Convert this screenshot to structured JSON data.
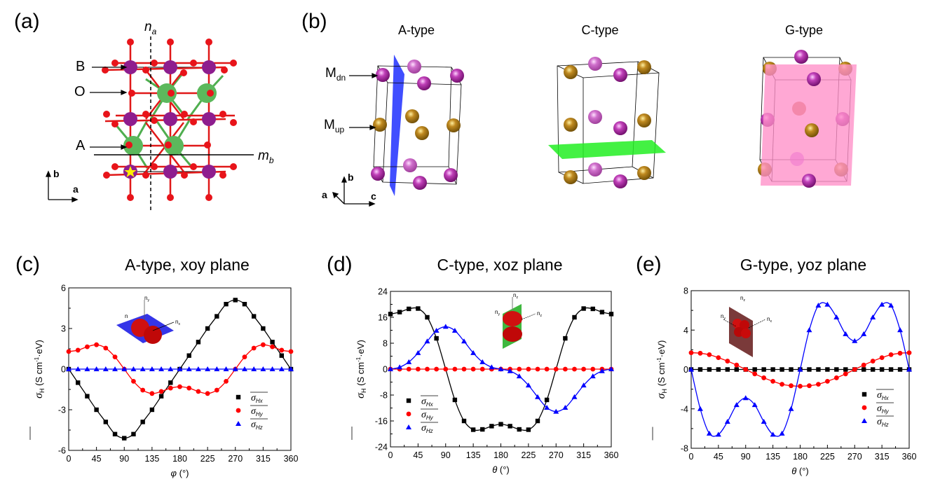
{
  "panels": {
    "a": {
      "label": "(a)",
      "labels": {
        "B": "B",
        "O": "O",
        "A": "A",
        "na": "n",
        "na_sub": "a",
        "mb": "m",
        "mb_sub": "b",
        "axis_b": "b",
        "axis_a": "a"
      },
      "colors": {
        "oxygen": "#e8141a",
        "B_site": "#8e1d8e",
        "A_site": "#5cb85c",
        "bond": "#e01818",
        "star": "#ffee00"
      }
    },
    "b": {
      "label": "(b)",
      "types": [
        "A-type",
        "C-type",
        "G-type"
      ],
      "labels": {
        "mdn": "M",
        "mdn_sub": "dn",
        "mup": "M",
        "mup_sub": "up",
        "axis_b": "b",
        "axis_a": "a",
        "axis_c": "c"
      },
      "colors": {
        "M_dn": "#a0169a",
        "M_up": "#b07a10",
        "light_magenta": "#c455c0",
        "plane_A": "#2b3bff",
        "plane_C": "#22ee22",
        "plane_G": "#ff8fc8"
      }
    }
  },
  "legend_labels": {
    "sigma": "σ",
    "sub_x": "Hx",
    "sub_y": "Hy",
    "sub_z": "Hz"
  },
  "inset_labels": {
    "nx": "n",
    "nx_sub": "x",
    "ny": "n",
    "ny_sub": "y",
    "nz": "n",
    "nz_sub": "z"
  },
  "chart_data": [
    {
      "id": "c",
      "panel_label": "(c)",
      "type": "line",
      "title": "A-type, xoy plane",
      "xlabel": "φ (°)",
      "xlabel_symbol": "φ",
      "xlabel_unit": " (°)",
      "ylabel": "σH (S cm-1·eV)",
      "ylabel_parts": {
        "sigma": "σ",
        "sub": "H",
        "unit_a": " (S cm",
        "sup": "-1",
        "unit_b": "·eV)"
      },
      "xlim": [
        0,
        360
      ],
      "ylim": [
        -6,
        6
      ],
      "xticks": [
        0,
        45,
        90,
        135,
        180,
        225,
        270,
        315,
        360
      ],
      "yticks": [
        -6,
        -3,
        0,
        3,
        6
      ],
      "legend": "lower-right",
      "inset_plane_color": "#3535e8",
      "x": [
        0,
        15,
        30,
        45,
        60,
        75,
        90,
        105,
        120,
        135,
        150,
        165,
        180,
        195,
        210,
        225,
        240,
        255,
        270,
        285,
        300,
        315,
        330,
        345,
        360
      ],
      "series": [
        {
          "name": "σHx",
          "color": "#000000",
          "marker": "square",
          "values": [
            0,
            -1,
            -2,
            -3,
            -3.9,
            -4.8,
            -5.1,
            -4.8,
            -3.9,
            -3,
            -2,
            -1,
            0,
            1,
            2,
            3,
            3.9,
            4.8,
            5.1,
            4.8,
            3.9,
            3,
            2,
            1,
            0
          ]
        },
        {
          "name": "σHy",
          "color": "#ff0000",
          "marker": "circle",
          "values": [
            1.3,
            1.4,
            1.65,
            1.8,
            1.55,
            0.9,
            0,
            -0.9,
            -1.55,
            -1.8,
            -1.65,
            -1.4,
            -1.3,
            -1.4,
            -1.65,
            -1.8,
            -1.55,
            -0.9,
            0,
            0.9,
            1.55,
            1.8,
            1.65,
            1.4,
            1.3
          ]
        },
        {
          "name": "σHz",
          "color": "#0000ff",
          "marker": "triangle",
          "values": [
            0,
            0,
            0,
            0,
            0,
            0,
            0,
            0,
            0,
            0,
            0,
            0,
            0,
            0,
            0,
            0,
            0,
            0,
            0,
            0,
            0,
            0,
            0,
            0,
            0
          ]
        }
      ]
    },
    {
      "id": "d",
      "panel_label": "(d)",
      "type": "line",
      "title": "C-type, xoz plane",
      "xlabel": "θ (°)",
      "xlabel_symbol": "θ",
      "xlabel_unit": " (°)",
      "ylabel": "σH (S cm-1·eV)",
      "ylabel_parts": {
        "sigma": "σ",
        "sub": "H",
        "unit_a": " (S cm",
        "sup": "-1",
        "unit_b": "·eV)"
      },
      "xlim": [
        0,
        360
      ],
      "ylim": [
        -24,
        24
      ],
      "xticks": [
        0,
        45,
        90,
        135,
        180,
        225,
        270,
        315,
        360
      ],
      "yticks": [
        -24,
        -16,
        -8,
        0,
        8,
        16,
        24
      ],
      "legend": "lower-left",
      "inset_plane_color": "#3fb83f",
      "x": [
        0,
        15,
        30,
        45,
        60,
        75,
        90,
        105,
        120,
        135,
        150,
        165,
        180,
        195,
        210,
        225,
        240,
        255,
        270,
        285,
        300,
        315,
        330,
        345,
        360
      ],
      "series": [
        {
          "name": "σHx",
          "color": "#000000",
          "marker": "square",
          "values": [
            17,
            17.6,
            18.6,
            18.7,
            16,
            9.5,
            0,
            -9.5,
            -16,
            -18.7,
            -18.6,
            -17.6,
            -17,
            -17.6,
            -18.6,
            -18.7,
            -16,
            -9.5,
            0,
            9.5,
            16,
            18.7,
            18.6,
            17.6,
            17
          ],
          "marker_skip": [
            6,
            18
          ]
        },
        {
          "name": "σHy",
          "color": "#ff0000",
          "marker": "circle",
          "values": [
            0,
            0,
            0,
            0,
            0,
            0,
            0,
            0,
            0,
            0,
            0,
            0,
            0,
            0,
            0,
            0,
            0,
            0,
            0,
            0,
            0,
            0,
            0,
            0,
            0
          ]
        },
        {
          "name": "σHz",
          "color": "#0000ff",
          "marker": "triangle",
          "values": [
            0,
            0.6,
            2.2,
            5,
            8.6,
            11.9,
            13.1,
            11.9,
            8.6,
            5,
            2.2,
            0.6,
            0,
            -0.6,
            -2.2,
            -5,
            -8.6,
            -11.9,
            -13.1,
            -11.9,
            -8.6,
            -5,
            -2.2,
            -0.6,
            0
          ]
        }
      ]
    },
    {
      "id": "e",
      "panel_label": "(e)",
      "type": "line",
      "title": "G-type, yoz plane",
      "xlabel": "θ (°)",
      "xlabel_symbol": "θ",
      "xlabel_unit": " (°)",
      "ylabel": "σH (S cm-1·eV)",
      "ylabel_parts": {
        "sigma": "σ",
        "sub": "H",
        "unit_a": " (S cm",
        "sup": "-1",
        "unit_b": "·eV)"
      },
      "xlim": [
        0,
        360
      ],
      "ylim": [
        -8,
        8
      ],
      "xticks": [
        0,
        45,
        90,
        135,
        180,
        225,
        270,
        315,
        360
      ],
      "yticks": [
        -8,
        -4,
        0,
        4,
        8
      ],
      "legend": "lower-right",
      "inset_plane_color": "#7a3a3a",
      "x": [
        0,
        15,
        30,
        45,
        60,
        75,
        90,
        105,
        120,
        135,
        150,
        165,
        180,
        195,
        210,
        225,
        240,
        255,
        270,
        285,
        300,
        315,
        330,
        345,
        360
      ],
      "series": [
        {
          "name": "σHx",
          "color": "#000000",
          "marker": "square",
          "values": [
            0,
            0,
            0,
            0,
            0,
            0,
            0,
            0,
            0,
            0,
            0,
            0,
            0,
            0,
            0,
            0,
            0,
            0,
            0,
            0,
            0,
            0,
            0,
            0,
            0
          ]
        },
        {
          "name": "σHy",
          "color": "#ff0000",
          "marker": "circle",
          "values": [
            1.7,
            1.65,
            1.5,
            1.2,
            0.85,
            0.45,
            0,
            -0.45,
            -0.85,
            -1.2,
            -1.5,
            -1.65,
            -1.7,
            -1.65,
            -1.5,
            -1.2,
            -0.85,
            -0.45,
            0,
            0.45,
            0.85,
            1.2,
            1.5,
            1.65,
            1.7
          ]
        },
        {
          "name": "σHz",
          "color": "#0000ff",
          "marker": "triangle",
          "values": [
            0,
            -4,
            -6.5,
            -6.6,
            -5.3,
            -3.6,
            -2.9,
            -3.6,
            -5.3,
            -6.6,
            -6.5,
            -4,
            0,
            4,
            6.5,
            6.6,
            5.3,
            3.6,
            2.9,
            3.6,
            5.3,
            6.6,
            6.5,
            4,
            0
          ]
        }
      ]
    }
  ]
}
